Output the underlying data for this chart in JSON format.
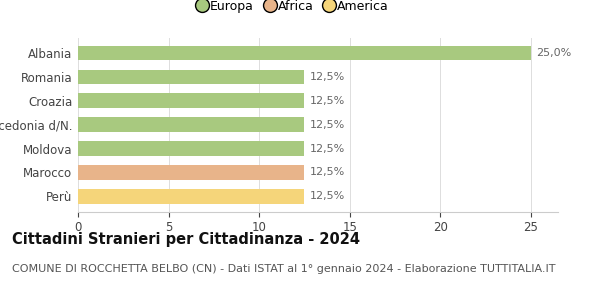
{
  "categories": [
    "Albania",
    "Romania",
    "Croazia",
    "Macedonia d/N.",
    "Moldova",
    "Marocco",
    "Perù"
  ],
  "values": [
    25.0,
    12.5,
    12.5,
    12.5,
    12.5,
    12.5,
    12.5
  ],
  "bar_colors": [
    "#a8c97f",
    "#a8c97f",
    "#a8c97f",
    "#a8c97f",
    "#a8c97f",
    "#e8b48a",
    "#f5d57a"
  ],
  "labels": [
    "25,0%",
    "12,5%",
    "12,5%",
    "12,5%",
    "12,5%",
    "12,5%",
    "12,5%"
  ],
  "legend_items": [
    {
      "label": "Europa",
      "color": "#a8c97f"
    },
    {
      "label": "Africa",
      "color": "#e8b48a"
    },
    {
      "label": "America",
      "color": "#f5d57a"
    }
  ],
  "xlim": [
    0,
    26.5
  ],
  "xticks": [
    0,
    5,
    10,
    15,
    20,
    25
  ],
  "title": "Cittadini Stranieri per Cittadinanza - 2024",
  "subtitle": "COMUNE DI ROCCHETTA BELBO (CN) - Dati ISTAT al 1° gennaio 2024 - Elaborazione TUTTITALIA.IT",
  "title_fontsize": 10.5,
  "subtitle_fontsize": 8,
  "label_fontsize": 8,
  "tick_fontsize": 8.5,
  "background_color": "#ffffff"
}
